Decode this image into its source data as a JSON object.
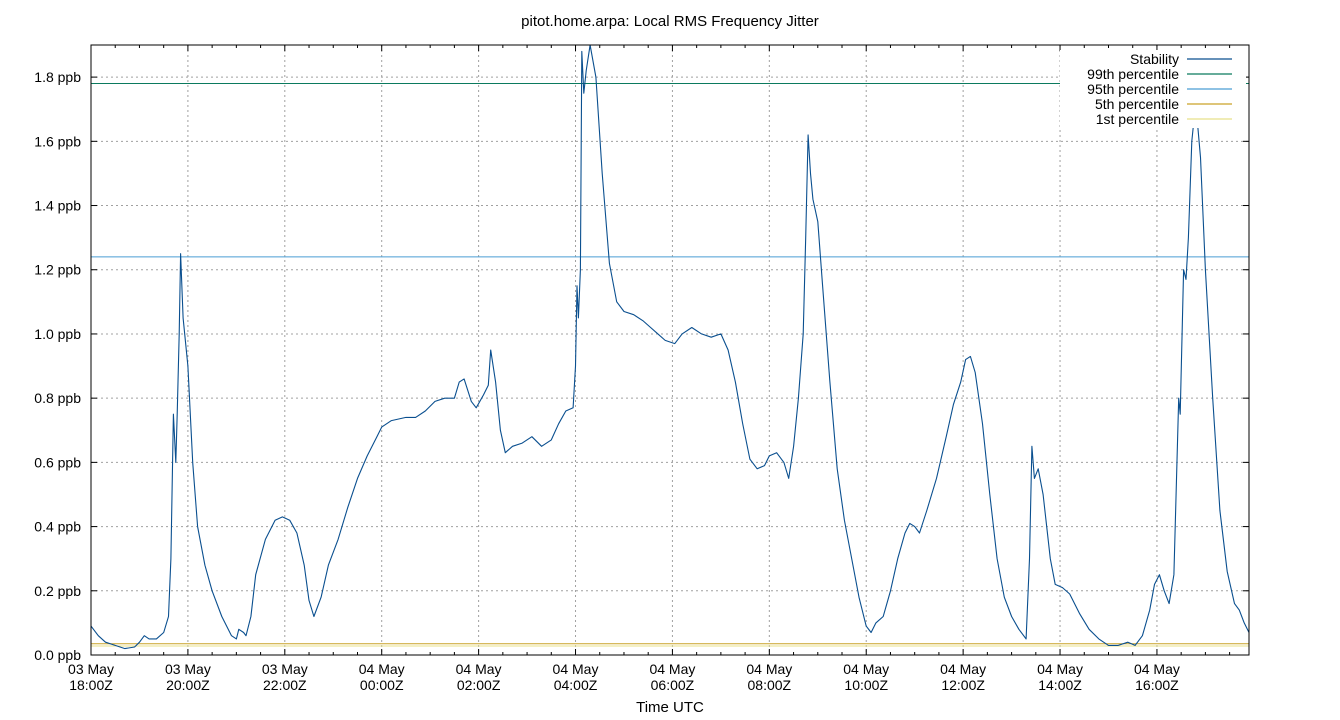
{
  "chart_data": {
    "type": "line",
    "title": "pitot.home.arpa: Local RMS Frequency Jitter",
    "xlabel": "Time UTC",
    "ylabel": "",
    "grid": true,
    "legend_placement": "top-right",
    "x_unit": "hours since 03 May 18:00Z",
    "xlim": [
      0,
      23.9
    ],
    "ylim": [
      0,
      1.9
    ],
    "y_ticks": [
      {
        "value": 0.0,
        "label": "0.0 ppb"
      },
      {
        "value": 0.2,
        "label": "0.2 ppb"
      },
      {
        "value": 0.4,
        "label": "0.4 ppb"
      },
      {
        "value": 0.6,
        "label": "0.6 ppb"
      },
      {
        "value": 0.8,
        "label": "0.8 ppb"
      },
      {
        "value": 1.0,
        "label": "1.0 ppb"
      },
      {
        "value": 1.2,
        "label": "1.2 ppb"
      },
      {
        "value": 1.4,
        "label": "1.4 ppb"
      },
      {
        "value": 1.6,
        "label": "1.6 ppb"
      },
      {
        "value": 1.8,
        "label": "1.8 ppb"
      }
    ],
    "x_ticks": [
      {
        "value": 0,
        "line1": "03 May",
        "line2": "18:00Z"
      },
      {
        "value": 2,
        "line1": "03 May",
        "line2": "20:00Z"
      },
      {
        "value": 4,
        "line1": "03 May",
        "line2": "22:00Z"
      },
      {
        "value": 6,
        "line1": "04 May",
        "line2": "00:00Z"
      },
      {
        "value": 8,
        "line1": "04 May",
        "line2": "02:00Z"
      },
      {
        "value": 10,
        "line1": "04 May",
        "line2": "04:00Z"
      },
      {
        "value": 12,
        "line1": "04 May",
        "line2": "06:00Z"
      },
      {
        "value": 14,
        "line1": "04 May",
        "line2": "08:00Z"
      },
      {
        "value": 16,
        "line1": "04 May",
        "line2": "10:00Z"
      },
      {
        "value": 18,
        "line1": "04 May",
        "line2": "12:00Z"
      },
      {
        "value": 20,
        "line1": "04 May",
        "line2": "14:00Z"
      },
      {
        "value": 22,
        "line1": "04 May",
        "line2": "16:00Z"
      }
    ],
    "series": [
      {
        "name": "Stability",
        "color": "#0a4f8f",
        "points": [
          [
            0.0,
            0.09
          ],
          [
            0.15,
            0.06
          ],
          [
            0.3,
            0.04
          ],
          [
            0.5,
            0.03
          ],
          [
            0.7,
            0.02
          ],
          [
            0.9,
            0.025
          ],
          [
            1.0,
            0.04
          ],
          [
            1.1,
            0.06
          ],
          [
            1.2,
            0.05
          ],
          [
            1.35,
            0.05
          ],
          [
            1.5,
            0.07
          ],
          [
            1.6,
            0.12
          ],
          [
            1.65,
            0.3
          ],
          [
            1.7,
            0.75
          ],
          [
            1.75,
            0.6
          ],
          [
            1.78,
            0.75
          ],
          [
            1.82,
            1.0
          ],
          [
            1.85,
            1.25
          ],
          [
            1.9,
            1.05
          ],
          [
            2.0,
            0.9
          ],
          [
            2.1,
            0.6
          ],
          [
            2.2,
            0.4
          ],
          [
            2.35,
            0.28
          ],
          [
            2.5,
            0.2
          ],
          [
            2.7,
            0.12
          ],
          [
            2.9,
            0.06
          ],
          [
            3.0,
            0.05
          ],
          [
            3.05,
            0.08
          ],
          [
            3.15,
            0.07
          ],
          [
            3.2,
            0.06
          ],
          [
            3.3,
            0.12
          ],
          [
            3.4,
            0.25
          ],
          [
            3.6,
            0.36
          ],
          [
            3.8,
            0.42
          ],
          [
            3.95,
            0.43
          ],
          [
            4.1,
            0.42
          ],
          [
            4.25,
            0.38
          ],
          [
            4.4,
            0.28
          ],
          [
            4.5,
            0.17
          ],
          [
            4.6,
            0.12
          ],
          [
            4.75,
            0.18
          ],
          [
            4.9,
            0.28
          ],
          [
            5.1,
            0.36
          ],
          [
            5.3,
            0.46
          ],
          [
            5.5,
            0.55
          ],
          [
            5.7,
            0.62
          ],
          [
            5.9,
            0.68
          ],
          [
            6.0,
            0.71
          ],
          [
            6.2,
            0.73
          ],
          [
            6.5,
            0.74
          ],
          [
            6.7,
            0.74
          ],
          [
            6.9,
            0.76
          ],
          [
            7.1,
            0.79
          ],
          [
            7.3,
            0.8
          ],
          [
            7.5,
            0.8
          ],
          [
            7.6,
            0.85
          ],
          [
            7.7,
            0.86
          ],
          [
            7.85,
            0.79
          ],
          [
            7.95,
            0.77
          ],
          [
            8.1,
            0.81
          ],
          [
            8.2,
            0.84
          ],
          [
            8.25,
            0.95
          ],
          [
            8.35,
            0.85
          ],
          [
            8.45,
            0.7
          ],
          [
            8.55,
            0.63
          ],
          [
            8.7,
            0.65
          ],
          [
            8.9,
            0.66
          ],
          [
            9.1,
            0.68
          ],
          [
            9.3,
            0.65
          ],
          [
            9.5,
            0.67
          ],
          [
            9.65,
            0.72
          ],
          [
            9.8,
            0.76
          ],
          [
            9.95,
            0.77
          ],
          [
            10.0,
            0.9
          ],
          [
            10.03,
            1.15
          ],
          [
            10.06,
            1.05
          ],
          [
            10.1,
            1.2
          ],
          [
            10.13,
            1.88
          ],
          [
            10.17,
            1.75
          ],
          [
            10.22,
            1.82
          ],
          [
            10.3,
            1.9
          ],
          [
            10.42,
            1.8
          ],
          [
            10.55,
            1.5
          ],
          [
            10.7,
            1.22
          ],
          [
            10.85,
            1.1
          ],
          [
            11.0,
            1.07
          ],
          [
            11.2,
            1.06
          ],
          [
            11.4,
            1.04
          ],
          [
            11.55,
            1.02
          ],
          [
            11.7,
            1.0
          ],
          [
            11.85,
            0.98
          ],
          [
            12.05,
            0.97
          ],
          [
            12.2,
            1.0
          ],
          [
            12.4,
            1.02
          ],
          [
            12.6,
            1.0
          ],
          [
            12.8,
            0.99
          ],
          [
            13.0,
            1.0
          ],
          [
            13.15,
            0.95
          ],
          [
            13.3,
            0.85
          ],
          [
            13.45,
            0.72
          ],
          [
            13.6,
            0.61
          ],
          [
            13.75,
            0.58
          ],
          [
            13.9,
            0.59
          ],
          [
            14.0,
            0.62
          ],
          [
            14.15,
            0.63
          ],
          [
            14.3,
            0.6
          ],
          [
            14.4,
            0.55
          ],
          [
            14.5,
            0.65
          ],
          [
            14.6,
            0.8
          ],
          [
            14.7,
            1.0
          ],
          [
            14.75,
            1.3
          ],
          [
            14.8,
            1.62
          ],
          [
            14.85,
            1.5
          ],
          [
            14.9,
            1.42
          ],
          [
            15.0,
            1.35
          ],
          [
            15.1,
            1.15
          ],
          [
            15.25,
            0.85
          ],
          [
            15.4,
            0.58
          ],
          [
            15.55,
            0.42
          ],
          [
            15.7,
            0.3
          ],
          [
            15.85,
            0.18
          ],
          [
            16.0,
            0.09
          ],
          [
            16.1,
            0.07
          ],
          [
            16.2,
            0.1
          ],
          [
            16.35,
            0.12
          ],
          [
            16.5,
            0.2
          ],
          [
            16.65,
            0.3
          ],
          [
            16.8,
            0.38
          ],
          [
            16.9,
            0.41
          ],
          [
            17.0,
            0.4
          ],
          [
            17.1,
            0.38
          ],
          [
            17.25,
            0.45
          ],
          [
            17.45,
            0.55
          ],
          [
            17.65,
            0.68
          ],
          [
            17.8,
            0.78
          ],
          [
            17.95,
            0.85
          ],
          [
            18.05,
            0.92
          ],
          [
            18.15,
            0.93
          ],
          [
            18.25,
            0.88
          ],
          [
            18.4,
            0.72
          ],
          [
            18.55,
            0.5
          ],
          [
            18.7,
            0.3
          ],
          [
            18.85,
            0.18
          ],
          [
            19.0,
            0.12
          ],
          [
            19.15,
            0.08
          ],
          [
            19.3,
            0.05
          ],
          [
            19.37,
            0.3
          ],
          [
            19.42,
            0.65
          ],
          [
            19.47,
            0.55
          ],
          [
            19.55,
            0.58
          ],
          [
            19.65,
            0.5
          ],
          [
            19.8,
            0.3
          ],
          [
            19.9,
            0.22
          ],
          [
            20.05,
            0.21
          ],
          [
            20.2,
            0.19
          ],
          [
            20.4,
            0.13
          ],
          [
            20.6,
            0.08
          ],
          [
            20.8,
            0.05
          ],
          [
            21.0,
            0.03
          ],
          [
            21.2,
            0.03
          ],
          [
            21.4,
            0.04
          ],
          [
            21.55,
            0.03
          ],
          [
            21.7,
            0.06
          ],
          [
            21.85,
            0.14
          ],
          [
            21.95,
            0.22
          ],
          [
            22.05,
            0.25
          ],
          [
            22.15,
            0.2
          ],
          [
            22.25,
            0.16
          ],
          [
            22.35,
            0.25
          ],
          [
            22.45,
            0.8
          ],
          [
            22.48,
            0.75
          ],
          [
            22.55,
            1.2
          ],
          [
            22.6,
            1.17
          ],
          [
            22.65,
            1.3
          ],
          [
            22.72,
            1.6
          ],
          [
            22.8,
            1.72
          ],
          [
            22.9,
            1.55
          ],
          [
            23.0,
            1.2
          ],
          [
            23.15,
            0.8
          ],
          [
            23.3,
            0.45
          ],
          [
            23.45,
            0.26
          ],
          [
            23.6,
            0.16
          ],
          [
            23.7,
            0.14
          ],
          [
            23.8,
            0.1
          ],
          [
            23.9,
            0.07
          ]
        ]
      },
      {
        "name": "99th percentile",
        "color": "#0b7a5e",
        "constant": 1.78
      },
      {
        "name": "95th percentile",
        "color": "#4a9ed4",
        "constant": 1.24
      },
      {
        "name": "5th percentile",
        "color": "#c9a227",
        "constant": 0.035
      },
      {
        "name": "1st percentile",
        "color": "#e8e08a",
        "constant": 0.028
      }
    ]
  }
}
